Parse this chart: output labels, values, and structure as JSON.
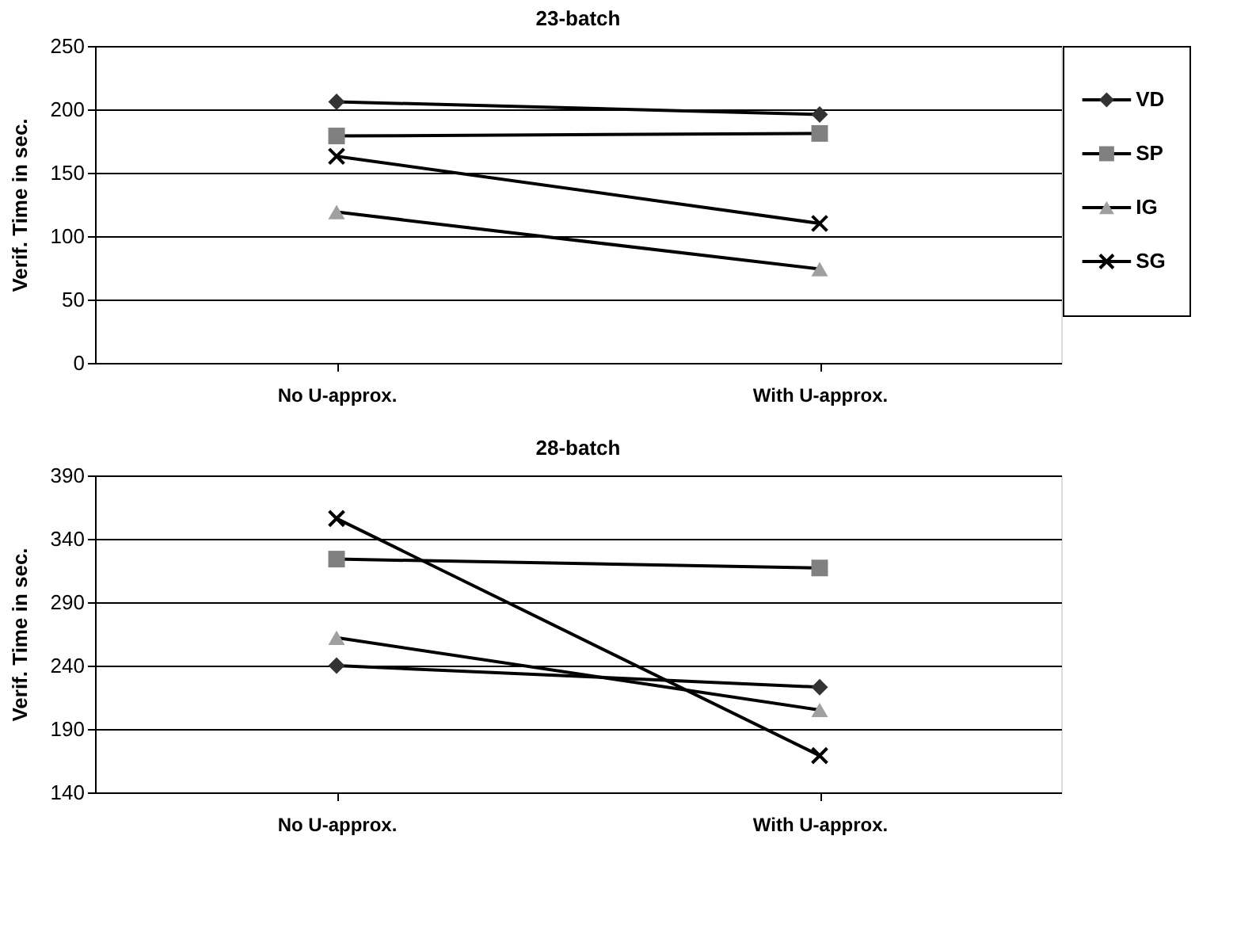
{
  "chart_data": [
    {
      "type": "line",
      "title": "23-batch",
      "ylabel": "Verif. Time in sec.",
      "categories": [
        "No U-approx.",
        "With U-approx."
      ],
      "ylim": [
        0,
        250
      ],
      "yticks": [
        0,
        50,
        100,
        150,
        200,
        250
      ],
      "grid": "y",
      "legend": "right",
      "series": [
        {
          "name": "VD",
          "color": "#333333",
          "marker": "diamond",
          "values": [
            206,
            196
          ]
        },
        {
          "name": "SP",
          "color": "#808080",
          "marker": "square",
          "values": [
            179,
            181
          ]
        },
        {
          "name": "IG",
          "color": "#a0a0a0",
          "marker": "triangle",
          "values": [
            119,
            74
          ]
        },
        {
          "name": "SG",
          "color": "#000000",
          "marker": "cross",
          "values": [
            163,
            110
          ]
        }
      ]
    },
    {
      "type": "line",
      "title": "28-batch",
      "ylabel": "Verif. Time in sec.",
      "categories": [
        "No U-approx.",
        "With U-approx."
      ],
      "ylim": [
        140,
        390
      ],
      "yticks": [
        140,
        190,
        240,
        290,
        340,
        390
      ],
      "grid": "y",
      "legend": false,
      "series": [
        {
          "color": "#333333",
          "marker": "diamond",
          "values": [
            240,
            223
          ]
        },
        {
          "color": "#808080",
          "marker": "square",
          "values": [
            324,
            317
          ]
        },
        {
          "color": "#a0a0a0",
          "marker": "triangle",
          "values": [
            262,
            205
          ]
        },
        {
          "color": "#000000",
          "marker": "cross",
          "values": [
            356,
            169
          ]
        }
      ]
    }
  ]
}
